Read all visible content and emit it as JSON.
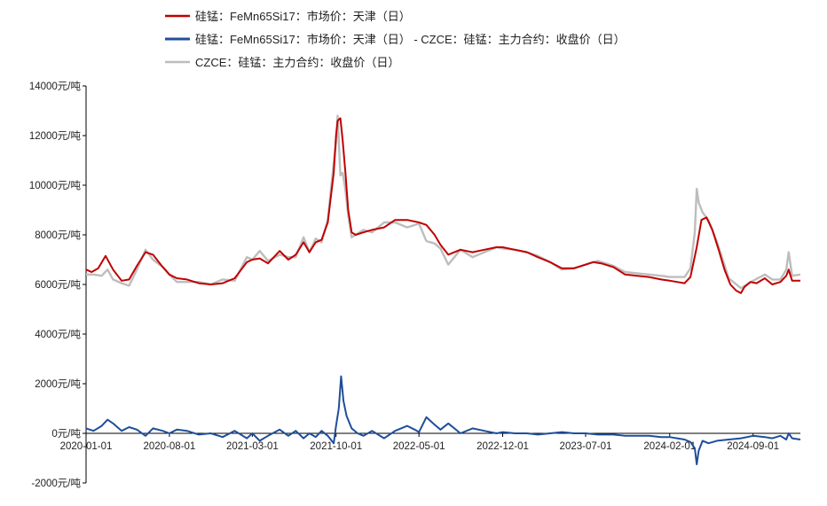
{
  "chart_data": {
    "type": "line",
    "title": "",
    "xlabel": "",
    "ylabel": "",
    "y_unit": "元/吨",
    "ylim": [
      -2000,
      14000
    ],
    "y_ticks": [
      {
        "value": 14000,
        "label": "14000元/吨"
      },
      {
        "value": 12000,
        "label": "12000元/吨"
      },
      {
        "value": 10000,
        "label": "10000元/吨"
      },
      {
        "value": 8000,
        "label": "8000元/吨"
      },
      {
        "value": 6000,
        "label": "6000元/吨"
      },
      {
        "value": 4000,
        "label": "4000元/吨"
      },
      {
        "value": 2000,
        "label": "2000元/吨"
      },
      {
        "value": 0,
        "label": "0元/吨"
      },
      {
        "value": -2000,
        "label": "-2000元/吨"
      }
    ],
    "xlim": [
      "2020-01-01",
      "2024-12-31"
    ],
    "x_ticks": [
      "2020-01-01",
      "2020-08-01",
      "2021-03-01",
      "2021-10-01",
      "2022-05-01",
      "2022-12-01",
      "2023-07-01",
      "2024-02-01",
      "2024-09-01"
    ],
    "grid": false,
    "legend_position": "top-left",
    "series": [
      {
        "name": "硅锰：FeMn65Si17：市场价：天津（日）",
        "color": "#C00000",
        "points": [
          [
            "2020-01-01",
            6600
          ],
          [
            "2020-01-15",
            6500
          ],
          [
            "2020-02-01",
            6650
          ],
          [
            "2020-02-20",
            7150
          ],
          [
            "2020-03-10",
            6600
          ],
          [
            "2020-04-01",
            6150
          ],
          [
            "2020-04-20",
            6200
          ],
          [
            "2020-05-10",
            6750
          ],
          [
            "2020-06-01",
            7300
          ],
          [
            "2020-06-20",
            7200
          ],
          [
            "2020-07-10",
            6800
          ],
          [
            "2020-08-01",
            6400
          ],
          [
            "2020-08-20",
            6250
          ],
          [
            "2020-09-15",
            6200
          ],
          [
            "2020-10-15",
            6050
          ],
          [
            "2020-11-15",
            6000
          ],
          [
            "2020-12-15",
            6050
          ],
          [
            "2021-01-15",
            6250
          ],
          [
            "2021-02-15",
            6900
          ],
          [
            "2021-03-01",
            7000
          ],
          [
            "2021-03-20",
            7050
          ],
          [
            "2021-04-10",
            6850
          ],
          [
            "2021-05-10",
            7350
          ],
          [
            "2021-06-01",
            7000
          ],
          [
            "2021-06-20",
            7200
          ],
          [
            "2021-07-10",
            7700
          ],
          [
            "2021-07-25",
            7300
          ],
          [
            "2021-08-10",
            7700
          ],
          [
            "2021-08-25",
            7800
          ],
          [
            "2021-09-10",
            8500
          ],
          [
            "2021-09-25",
            10500
          ],
          [
            "2021-10-01",
            12000
          ],
          [
            "2021-10-05",
            12600
          ],
          [
            "2021-10-12",
            12700
          ],
          [
            "2021-10-18",
            11800
          ],
          [
            "2021-10-25",
            10500
          ],
          [
            "2021-11-01",
            9000
          ],
          [
            "2021-11-10",
            8100
          ],
          [
            "2021-11-20",
            8000
          ],
          [
            "2021-12-10",
            8100
          ],
          [
            "2022-01-01",
            8200
          ],
          [
            "2022-02-01",
            8300
          ],
          [
            "2022-03-01",
            8600
          ],
          [
            "2022-04-01",
            8600
          ],
          [
            "2022-05-01",
            8500
          ],
          [
            "2022-05-20",
            8400
          ],
          [
            "2022-06-10",
            8000
          ],
          [
            "2022-06-25",
            7600
          ],
          [
            "2022-07-15",
            7200
          ],
          [
            "2022-08-15",
            7400
          ],
          [
            "2022-09-15",
            7300
          ],
          [
            "2022-10-15",
            7400
          ],
          [
            "2022-11-15",
            7500
          ],
          [
            "2022-12-01",
            7500
          ],
          [
            "2023-01-01",
            7400
          ],
          [
            "2023-02-01",
            7300
          ],
          [
            "2023-03-01",
            7100
          ],
          [
            "2023-04-01",
            6900
          ],
          [
            "2023-05-01",
            6650
          ],
          [
            "2023-06-01",
            6650
          ],
          [
            "2023-07-01",
            6800
          ],
          [
            "2023-07-20",
            6900
          ],
          [
            "2023-08-10",
            6850
          ],
          [
            "2023-09-10",
            6700
          ],
          [
            "2023-10-10",
            6400
          ],
          [
            "2023-11-10",
            6350
          ],
          [
            "2023-12-10",
            6300
          ],
          [
            "2024-01-10",
            6200
          ],
          [
            "2024-02-01",
            6150
          ],
          [
            "2024-02-20",
            6100
          ],
          [
            "2024-03-10",
            6050
          ],
          [
            "2024-03-25",
            6300
          ],
          [
            "2024-04-10",
            7500
          ],
          [
            "2024-04-22",
            8600
          ],
          [
            "2024-05-05",
            8700
          ],
          [
            "2024-05-20",
            8200
          ],
          [
            "2024-06-05",
            7400
          ],
          [
            "2024-06-20",
            6600
          ],
          [
            "2024-07-05",
            6000
          ],
          [
            "2024-07-20",
            5750
          ],
          [
            "2024-08-01",
            5650
          ],
          [
            "2024-08-10",
            5900
          ],
          [
            "2024-08-25",
            6100
          ],
          [
            "2024-09-10",
            6050
          ],
          [
            "2024-10-01",
            6250
          ],
          [
            "2024-10-20",
            6000
          ],
          [
            "2024-11-10",
            6100
          ],
          [
            "2024-11-25",
            6350
          ],
          [
            "2024-12-01",
            6600
          ],
          [
            "2024-12-10",
            6150
          ],
          [
            "2024-12-31",
            6150
          ]
        ]
      },
      {
        "name": "硅锰：FeMn65Si17：市场价：天津（日） - CZCE：硅锰：主力合约：收盘价（日）",
        "color": "#1F4E9A",
        "points": [
          [
            "2020-01-01",
            200
          ],
          [
            "2020-01-20",
            100
          ],
          [
            "2020-02-10",
            300
          ],
          [
            "2020-02-25",
            550
          ],
          [
            "2020-03-10",
            400
          ],
          [
            "2020-04-01",
            100
          ],
          [
            "2020-04-20",
            250
          ],
          [
            "2020-05-10",
            150
          ],
          [
            "2020-06-01",
            -100
          ],
          [
            "2020-06-20",
            200
          ],
          [
            "2020-07-15",
            100
          ],
          [
            "2020-08-01",
            0
          ],
          [
            "2020-08-20",
            150
          ],
          [
            "2020-09-15",
            100
          ],
          [
            "2020-10-15",
            -50
          ],
          [
            "2020-11-15",
            0
          ],
          [
            "2020-12-15",
            -150
          ],
          [
            "2021-01-15",
            100
          ],
          [
            "2021-02-15",
            -200
          ],
          [
            "2021-03-01",
            0
          ],
          [
            "2021-03-20",
            -300
          ],
          [
            "2021-04-10",
            -100
          ],
          [
            "2021-05-10",
            150
          ],
          [
            "2021-06-01",
            -100
          ],
          [
            "2021-06-20",
            100
          ],
          [
            "2021-07-10",
            -200
          ],
          [
            "2021-07-25",
            0
          ],
          [
            "2021-08-10",
            -150
          ],
          [
            "2021-08-25",
            100
          ],
          [
            "2021-09-10",
            -100
          ],
          [
            "2021-09-25",
            -400
          ],
          [
            "2021-10-01",
            300
          ],
          [
            "2021-10-08",
            1000
          ],
          [
            "2021-10-14",
            2300
          ],
          [
            "2021-10-20",
            1300
          ],
          [
            "2021-10-28",
            700
          ],
          [
            "2021-11-10",
            200
          ],
          [
            "2021-11-25",
            0
          ],
          [
            "2021-12-10",
            -100
          ],
          [
            "2022-01-01",
            100
          ],
          [
            "2022-02-01",
            -200
          ],
          [
            "2022-03-01",
            100
          ],
          [
            "2022-04-01",
            300
          ],
          [
            "2022-04-20",
            150
          ],
          [
            "2022-05-01",
            50
          ],
          [
            "2022-05-20",
            650
          ],
          [
            "2022-06-10",
            350
          ],
          [
            "2022-06-25",
            150
          ],
          [
            "2022-07-15",
            400
          ],
          [
            "2022-08-15",
            0
          ],
          [
            "2022-09-15",
            200
          ],
          [
            "2022-10-15",
            100
          ],
          [
            "2022-11-15",
            0
          ],
          [
            "2022-12-01",
            50
          ],
          [
            "2023-01-01",
            0
          ],
          [
            "2023-02-01",
            0
          ],
          [
            "2023-03-01",
            -50
          ],
          [
            "2023-04-01",
            0
          ],
          [
            "2023-05-01",
            50
          ],
          [
            "2023-06-01",
            0
          ],
          [
            "2023-07-01",
            0
          ],
          [
            "2023-08-01",
            -50
          ],
          [
            "2023-09-10",
            -50
          ],
          [
            "2023-10-10",
            -100
          ],
          [
            "2023-11-10",
            -100
          ],
          [
            "2023-12-10",
            -100
          ],
          [
            "2024-01-10",
            -150
          ],
          [
            "2024-02-01",
            -150
          ],
          [
            "2024-02-20",
            -200
          ],
          [
            "2024-03-10",
            -250
          ],
          [
            "2024-03-25",
            -350
          ],
          [
            "2024-04-05",
            -600
          ],
          [
            "2024-04-10",
            -1250
          ],
          [
            "2024-04-15",
            -700
          ],
          [
            "2024-04-25",
            -300
          ],
          [
            "2024-05-10",
            -400
          ],
          [
            "2024-06-01",
            -300
          ],
          [
            "2024-07-01",
            -250
          ],
          [
            "2024-08-01",
            -200
          ],
          [
            "2024-09-01",
            -100
          ],
          [
            "2024-10-01",
            -150
          ],
          [
            "2024-10-20",
            -200
          ],
          [
            "2024-11-10",
            -100
          ],
          [
            "2024-11-25",
            -250
          ],
          [
            "2024-12-01",
            0
          ],
          [
            "2024-12-10",
            -200
          ],
          [
            "2024-12-31",
            -250
          ]
        ]
      },
      {
        "name": "CZCE：硅锰：主力合约：收盘价（日）",
        "color": "#BDBDBD",
        "points": [
          [
            "2020-01-01",
            6400
          ],
          [
            "2020-01-20",
            6400
          ],
          [
            "2020-02-10",
            6350
          ],
          [
            "2020-02-25",
            6600
          ],
          [
            "2020-03-10",
            6200
          ],
          [
            "2020-04-01",
            6050
          ],
          [
            "2020-04-20",
            5950
          ],
          [
            "2020-05-10",
            6600
          ],
          [
            "2020-06-01",
            7400
          ],
          [
            "2020-06-20",
            7000
          ],
          [
            "2020-07-15",
            6700
          ],
          [
            "2020-08-01",
            6400
          ],
          [
            "2020-08-20",
            6100
          ],
          [
            "2020-09-15",
            6100
          ],
          [
            "2020-10-15",
            6100
          ],
          [
            "2020-11-15",
            6000
          ],
          [
            "2020-12-15",
            6200
          ],
          [
            "2021-01-15",
            6150
          ],
          [
            "2021-02-15",
            7100
          ],
          [
            "2021-03-01",
            7000
          ],
          [
            "2021-03-20",
            7350
          ],
          [
            "2021-04-10",
            6950
          ],
          [
            "2021-05-10",
            7200
          ],
          [
            "2021-06-01",
            7100
          ],
          [
            "2021-06-20",
            7100
          ],
          [
            "2021-07-10",
            7900
          ],
          [
            "2021-07-25",
            7300
          ],
          [
            "2021-08-10",
            7850
          ],
          [
            "2021-08-25",
            7700
          ],
          [
            "2021-09-10",
            8600
          ],
          [
            "2021-09-25",
            10900
          ],
          [
            "2021-10-01",
            11700
          ],
          [
            "2021-10-05",
            12800
          ],
          [
            "2021-10-12",
            10400
          ],
          [
            "2021-10-18",
            10500
          ],
          [
            "2021-10-25",
            9800
          ],
          [
            "2021-11-01",
            8800
          ],
          [
            "2021-11-10",
            7900
          ],
          [
            "2021-11-20",
            8000
          ],
          [
            "2021-12-10",
            8200
          ],
          [
            "2022-01-01",
            8100
          ],
          [
            "2022-02-01",
            8500
          ],
          [
            "2022-03-01",
            8500
          ],
          [
            "2022-04-01",
            8300
          ],
          [
            "2022-05-01",
            8450
          ],
          [
            "2022-05-20",
            7750
          ],
          [
            "2022-06-10",
            7650
          ],
          [
            "2022-06-25",
            7450
          ],
          [
            "2022-07-15",
            6800
          ],
          [
            "2022-08-15",
            7400
          ],
          [
            "2022-09-15",
            7100
          ],
          [
            "2022-10-15",
            7300
          ],
          [
            "2022-11-15",
            7500
          ],
          [
            "2022-12-01",
            7450
          ],
          [
            "2023-01-01",
            7400
          ],
          [
            "2023-02-01",
            7300
          ],
          [
            "2023-03-01",
            7150
          ],
          [
            "2023-04-01",
            6900
          ],
          [
            "2023-05-01",
            6600
          ],
          [
            "2023-06-01",
            6650
          ],
          [
            "2023-07-01",
            6800
          ],
          [
            "2023-08-01",
            6950
          ],
          [
            "2023-09-10",
            6750
          ],
          [
            "2023-10-10",
            6500
          ],
          [
            "2023-11-10",
            6450
          ],
          [
            "2023-12-10",
            6400
          ],
          [
            "2024-01-10",
            6350
          ],
          [
            "2024-02-01",
            6300
          ],
          [
            "2024-02-20",
            6300
          ],
          [
            "2024-03-10",
            6300
          ],
          [
            "2024-03-25",
            6650
          ],
          [
            "2024-04-05",
            8100
          ],
          [
            "2024-04-10",
            9850
          ],
          [
            "2024-04-15",
            9300
          ],
          [
            "2024-04-25",
            8900
          ],
          [
            "2024-05-10",
            8600
          ],
          [
            "2024-06-01",
            7700
          ],
          [
            "2024-07-01",
            6250
          ],
          [
            "2024-08-01",
            5850
          ],
          [
            "2024-09-01",
            6150
          ],
          [
            "2024-10-01",
            6400
          ],
          [
            "2024-10-20",
            6200
          ],
          [
            "2024-11-10",
            6200
          ],
          [
            "2024-11-25",
            6600
          ],
          [
            "2024-12-01",
            7300
          ],
          [
            "2024-12-10",
            6350
          ],
          [
            "2024-12-31",
            6400
          ]
        ]
      }
    ]
  }
}
